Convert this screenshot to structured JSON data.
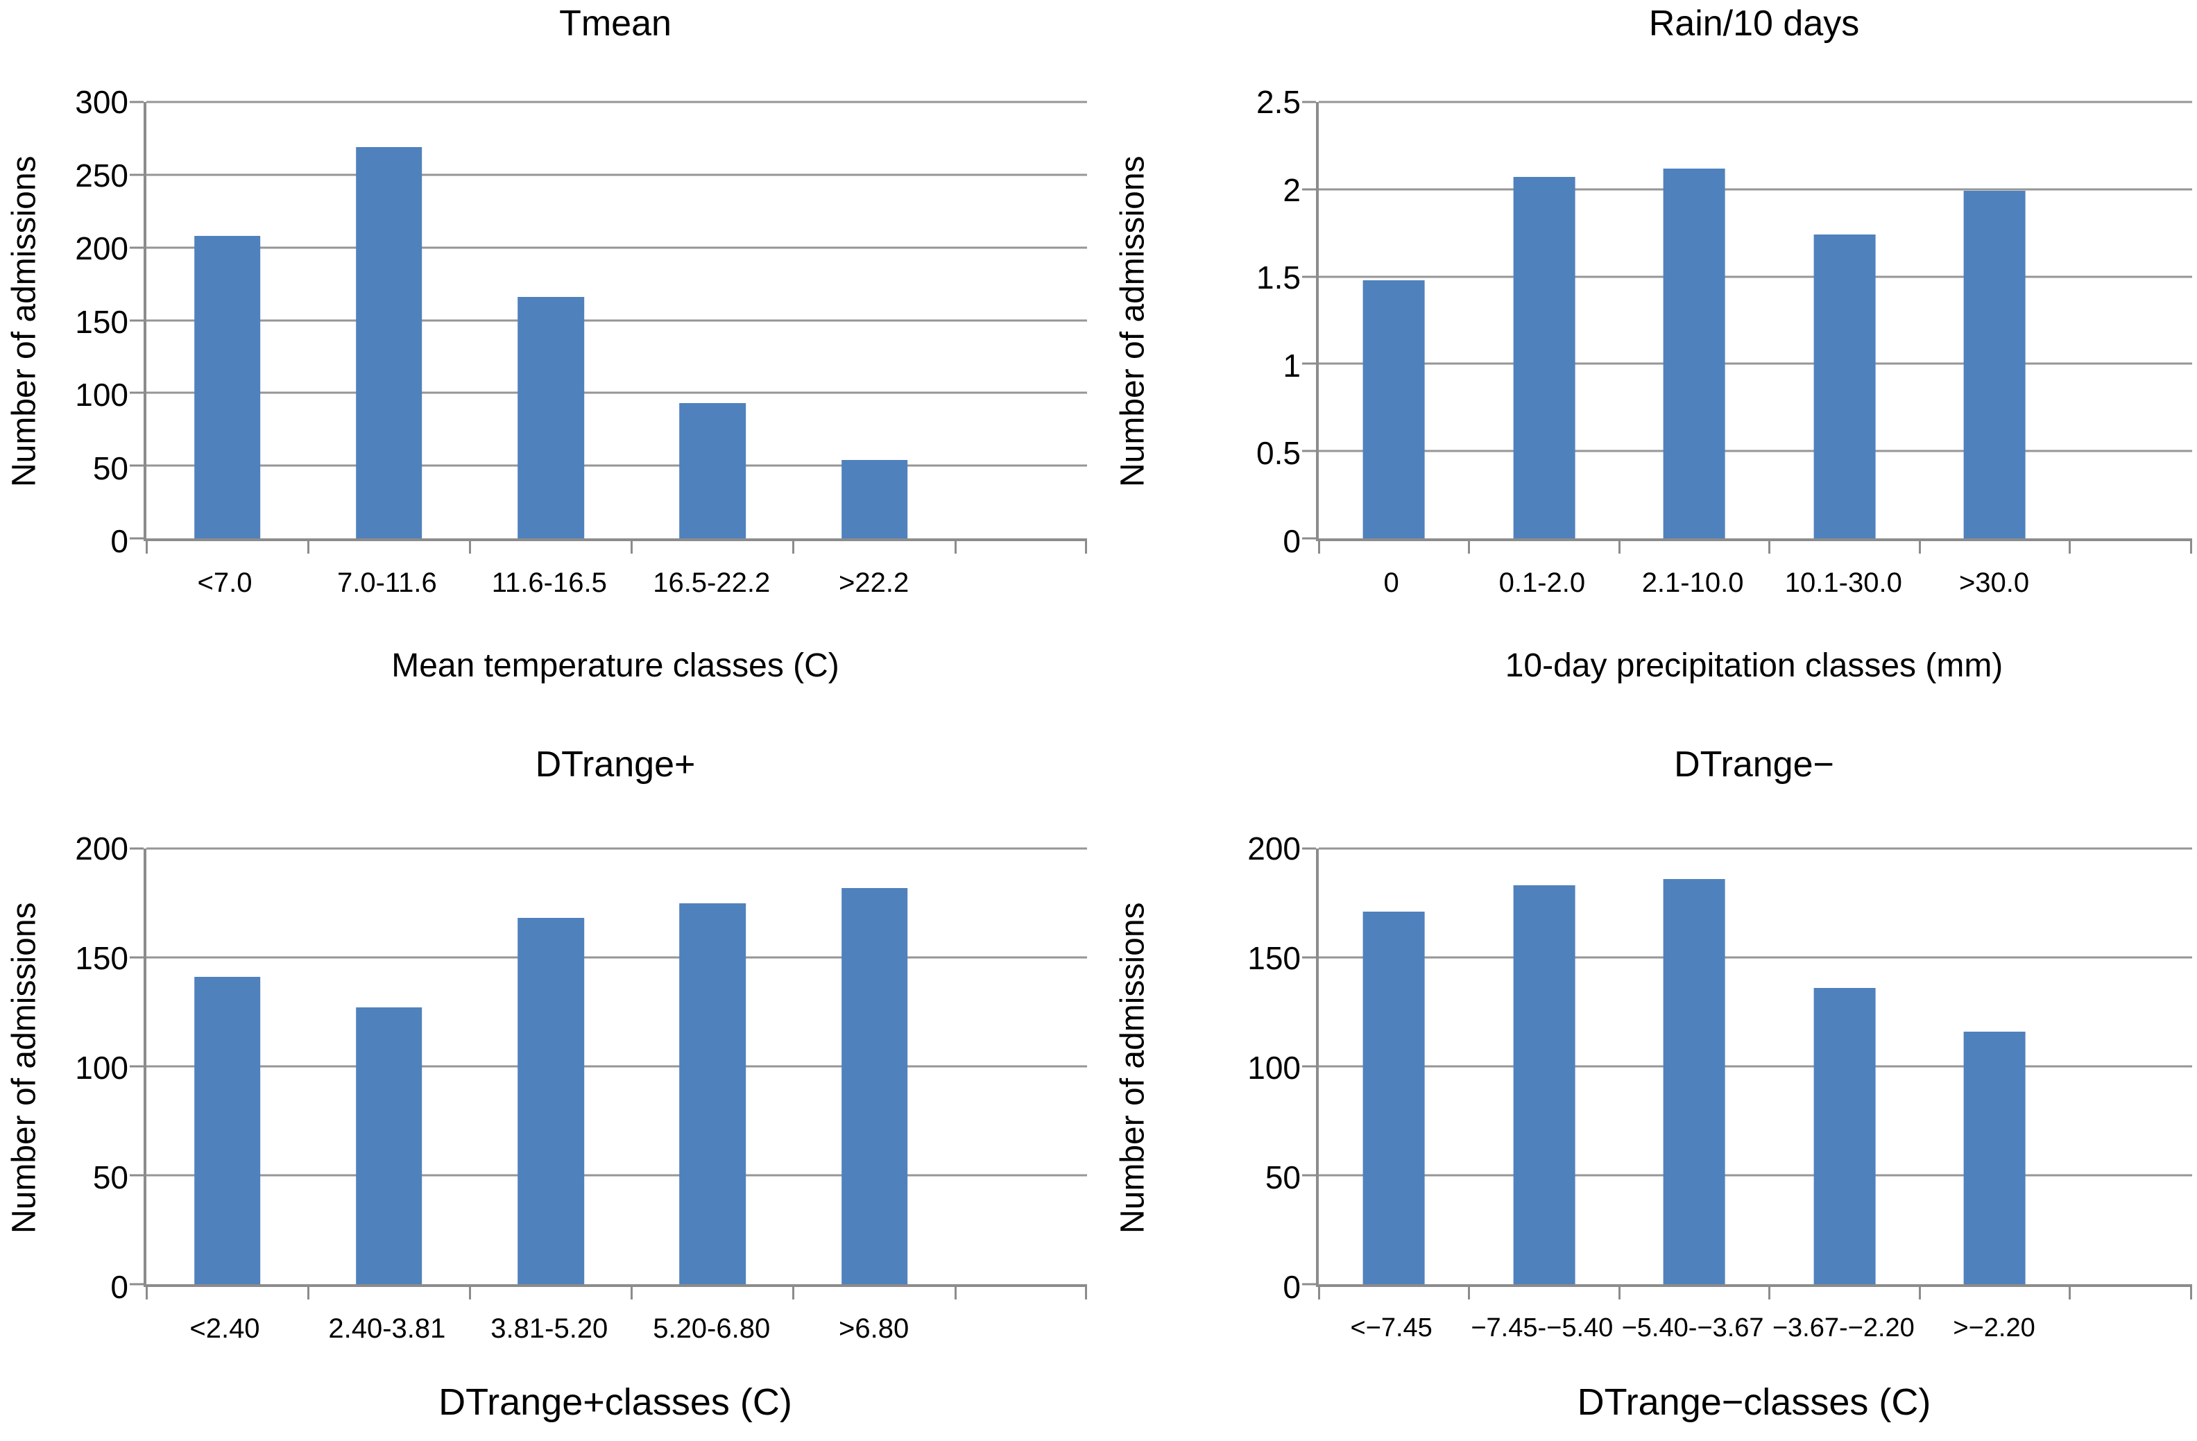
{
  "figure": {
    "background": "#ffffff",
    "bar_color": "#4f81bd",
    "grid_color": "#969696",
    "axis_color": "#8c8c8c",
    "text_color": "#000000"
  },
  "chart_data": [
    {
      "type": "bar",
      "title": "Tmean",
      "ylabel": "Number of admissions",
      "xlabel": "Mean temperature classes (C)",
      "categories": [
        "<7.0",
        "7.0-11.6",
        "11.6-16.5",
        "16.5-22.2",
        ">22.2"
      ],
      "values": [
        208,
        269,
        166,
        93,
        54
      ],
      "ylim": [
        0,
        300
      ],
      "ystep": 50,
      "grid": "horizontal",
      "legend": "none"
    },
    {
      "type": "bar",
      "title": "Rain/10 days",
      "ylabel": "Number of admissions",
      "xlabel": "10-day precipitation classes (mm)",
      "categories": [
        "0",
        "0.1-2.0",
        "2.1-10.0",
        "10.1-30.0",
        ">30.0"
      ],
      "values": [
        1.48,
        2.07,
        2.12,
        1.74,
        1.99
      ],
      "ylim": [
        0,
        2.5
      ],
      "ystep": 0.5,
      "grid": "horizontal",
      "legend": "none"
    },
    {
      "type": "bar",
      "title": "DTrange+",
      "ylabel": "Number of admissions",
      "xlabel": "DTrange+classes (C)",
      "categories": [
        "<2.40",
        "2.40-3.81",
        "3.81-5.20",
        "5.20-6.80",
        ">6.80"
      ],
      "values": [
        141,
        127,
        168,
        175,
        182
      ],
      "ylim": [
        0,
        200
      ],
      "ystep": 50,
      "grid": "horizontal",
      "legend": "none"
    },
    {
      "type": "bar",
      "title": "DTrange−",
      "ylabel": "Number of admissions",
      "xlabel": "DTrange−classes (C)",
      "categories": [
        "<−7.45",
        "−7.45-−5.40",
        "−5.40-−3.67",
        "−3.67-−2.20",
        ">−2.20"
      ],
      "values": [
        171,
        183,
        186,
        136,
        116
      ],
      "ylim": [
        0,
        200
      ],
      "ystep": 50,
      "grid": "horizontal",
      "legend": "none"
    }
  ]
}
